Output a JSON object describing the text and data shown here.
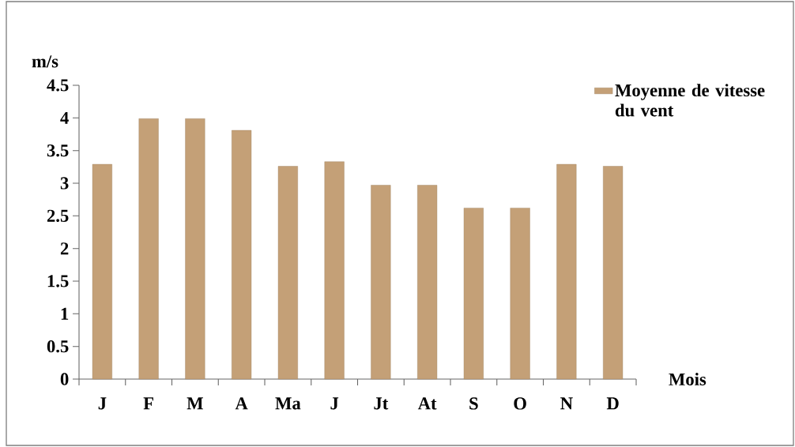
{
  "chart_data": {
    "type": "bar",
    "xlabel": "Mois",
    "ylabel": "m/s",
    "categories": [
      "J",
      "F",
      "M",
      "A",
      "Ma",
      "J",
      "Jt",
      "At",
      "S",
      "O",
      "N",
      "D"
    ],
    "series": [
      {
        "name": "Moyenne de vitesse du vent",
        "color": "#c4a077",
        "values": [
          3.29,
          3.99,
          3.99,
          3.81,
          3.26,
          3.33,
          2.97,
          2.97,
          2.62,
          2.62,
          3.29,
          3.26
        ]
      }
    ],
    "ylim": [
      0,
      4.5
    ],
    "yticks": [
      0,
      0.5,
      1,
      1.5,
      2,
      2.5,
      3,
      3.5,
      4,
      4.5
    ],
    "legend": "top right"
  }
}
